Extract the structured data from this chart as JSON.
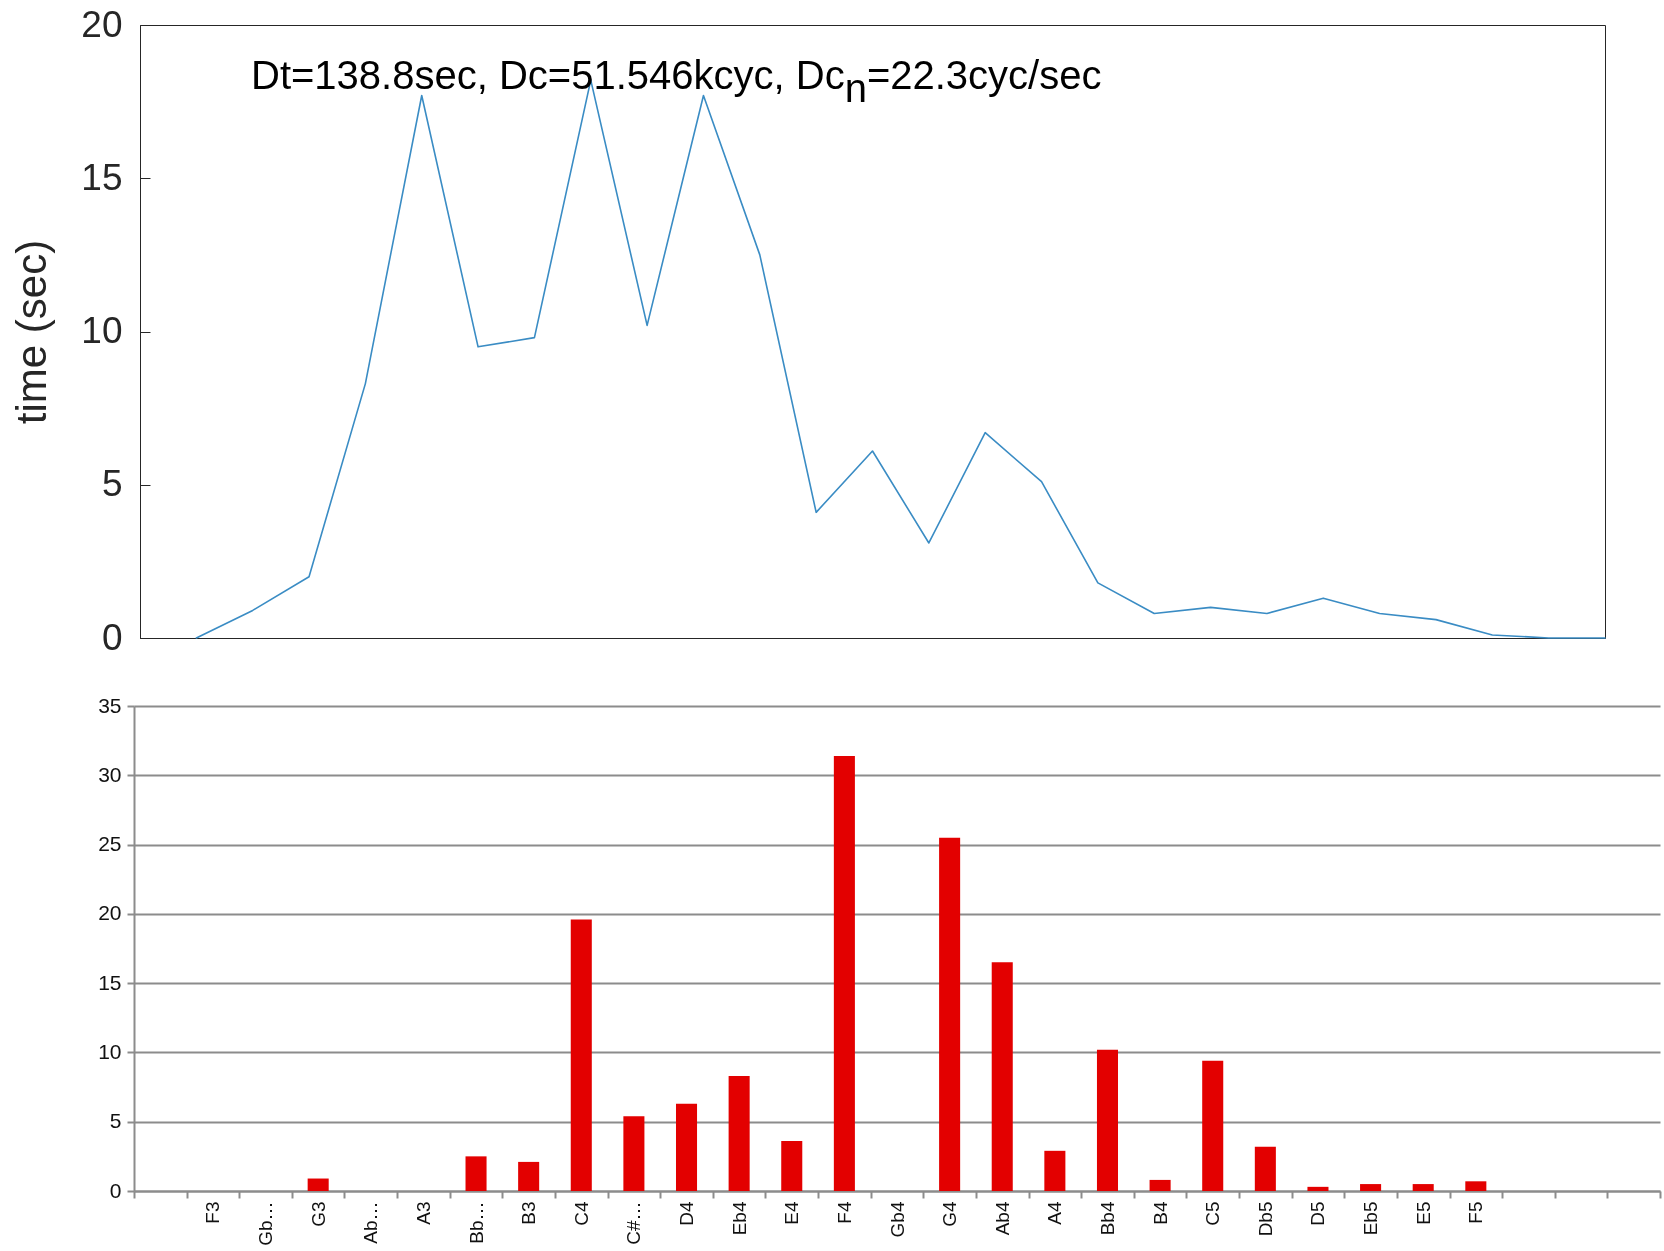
{
  "chart_data": [
    {
      "type": "line",
      "ylabel": "time (sec)",
      "annotations": [
        "Dt=138.8sec, Dc=51.546kcyc, Dc$_{n}$=22.3cyc/sec"
      ],
      "categories": [
        null,
        null,
        null,
        null,
        null,
        null,
        null,
        null,
        null,
        null,
        null,
        null,
        null,
        null,
        null,
        null,
        null,
        null,
        null,
        null,
        null,
        null,
        null,
        null,
        null,
        null
      ],
      "values": [
        0,
        0.9,
        2.0,
        8.3,
        17.7,
        9.5,
        9.8,
        18.2,
        10.2,
        17.7,
        12.5,
        4.1,
        6.1,
        3.1,
        6.7,
        5.1,
        1.8,
        0.8,
        1.0,
        0.8,
        1.3,
        0.8,
        0.6,
        0.1,
        0,
        0
      ],
      "color": "#3a8cc4",
      "ylim": [
        0,
        20
      ],
      "yticks": [
        0,
        5,
        10,
        15,
        20
      ]
    },
    {
      "type": "bar",
      "categories": [
        null,
        "F3",
        "Gb…",
        "G3",
        "Ab…",
        "A3",
        "Bb…",
        "B3",
        "C4",
        "C#…",
        "D4",
        "Eb4",
        "E4",
        "F4",
        "Gb4",
        "G4",
        "Ab4",
        "A4",
        "Bb4",
        "B4",
        "C5",
        "Db5",
        "D5",
        "Eb5",
        "E5",
        "F5",
        null,
        null,
        null
      ],
      "values": [
        null,
        0,
        0,
        0.9,
        0,
        0,
        2.5,
        2.1,
        19.6,
        5.4,
        6.3,
        8.3,
        3.6,
        31.4,
        0,
        25.5,
        16.5,
        2.9,
        10.2,
        0.8,
        9.4,
        3.2,
        0.3,
        0.5,
        0.5,
        0.7,
        null,
        null,
        null
      ],
      "color": "#e30000",
      "ylim": [
        0,
        35
      ],
      "yticks": [
        0,
        5,
        10,
        15,
        20,
        25,
        30,
        35
      ],
      "grid": "y"
    }
  ]
}
